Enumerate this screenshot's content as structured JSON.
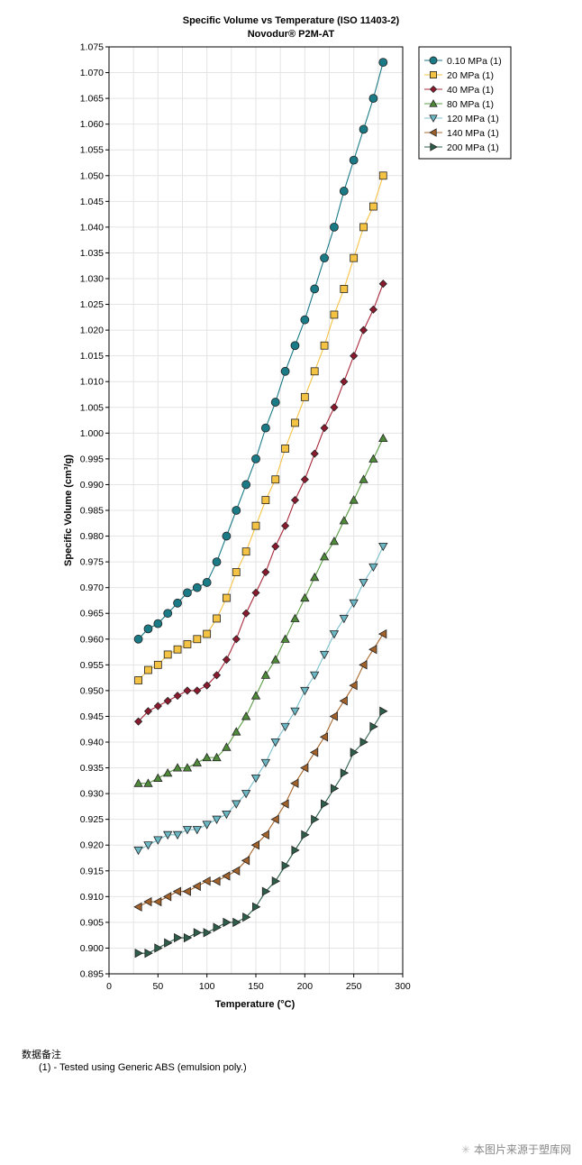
{
  "chart_data": {
    "type": "line",
    "title": "Specific Volume vs Temperature (ISO 11403-2)",
    "subtitle": "Novodur® P2M-AT",
    "xlabel": "Temperature (°C)",
    "ylabel": "Specific Volume (cm³/g)",
    "xlim": [
      0,
      300
    ],
    "ylim": [
      0.895,
      1.075
    ],
    "xticks": [
      "0",
      "50",
      "100",
      "150",
      "200",
      "250",
      "300"
    ],
    "yticks": [
      "0.895",
      "0.900",
      "0.905",
      "0.910",
      "0.915",
      "0.920",
      "0.925",
      "0.930",
      "0.935",
      "0.940",
      "0.945",
      "0.950",
      "0.955",
      "0.960",
      "0.965",
      "0.970",
      "0.975",
      "0.980",
      "0.985",
      "0.990",
      "0.995",
      "1.000",
      "1.005",
      "1.010",
      "1.015",
      "1.020",
      "1.025",
      "1.030",
      "1.035",
      "1.040",
      "1.045",
      "1.050",
      "1.055",
      "1.060",
      "1.065",
      "1.070",
      "1.075"
    ],
    "grid": true,
    "legend_position": "top-right",
    "x": [
      30,
      40,
      50,
      60,
      70,
      80,
      90,
      100,
      110,
      120,
      130,
      140,
      150,
      160,
      170,
      180,
      190,
      200,
      210,
      220,
      230,
      240,
      250,
      260,
      270,
      280
    ],
    "series": [
      {
        "name": "0.10 MPa (1)",
        "marker": "circle",
        "color": "#1a7a86",
        "line": "#1a7a86",
        "values": [
          0.96,
          0.962,
          0.963,
          0.965,
          0.967,
          0.969,
          0.97,
          0.971,
          0.975,
          0.98,
          0.985,
          0.99,
          0.995,
          1.001,
          1.006,
          1.012,
          1.017,
          1.022,
          1.028,
          1.034,
          1.04,
          1.047,
          1.053,
          1.059,
          1.065,
          1.072
        ]
      },
      {
        "name": "20 MPa (1)",
        "marker": "square",
        "color": "#f5c343",
        "line": "#f5c343",
        "values": [
          0.952,
          0.954,
          0.955,
          0.957,
          0.958,
          0.959,
          0.96,
          0.961,
          0.964,
          0.968,
          0.973,
          0.977,
          0.982,
          0.987,
          0.991,
          0.997,
          1.002,
          1.007,
          1.012,
          1.017,
          1.023,
          1.028,
          1.034,
          1.04,
          1.044,
          1.05
        ]
      },
      {
        "name": "40 MPa (1)",
        "marker": "diamond",
        "color": "#8b1a2e",
        "line": "#a8283a",
        "values": [
          0.944,
          0.946,
          0.947,
          0.948,
          0.949,
          0.95,
          0.95,
          0.951,
          0.953,
          0.956,
          0.96,
          0.965,
          0.969,
          0.973,
          0.978,
          0.982,
          0.987,
          0.991,
          0.996,
          1.001,
          1.005,
          1.01,
          1.015,
          1.02,
          1.024,
          1.029
        ]
      },
      {
        "name": "80 MPa (1)",
        "marker": "triangle-up",
        "color": "#4f8a3a",
        "line": "#5a9a44",
        "values": [
          0.932,
          0.932,
          0.933,
          0.934,
          0.935,
          0.935,
          0.936,
          0.937,
          0.937,
          0.939,
          0.942,
          0.945,
          0.949,
          0.953,
          0.956,
          0.96,
          0.964,
          0.968,
          0.972,
          0.976,
          0.979,
          0.983,
          0.987,
          0.991,
          0.995,
          0.999
        ]
      },
      {
        "name": "120 MPa (1)",
        "marker": "triangle-down",
        "color": "#6bb7c4",
        "line": "#7cc0cc",
        "values": [
          0.919,
          0.92,
          0.921,
          0.922,
          0.922,
          0.923,
          0.923,
          0.924,
          0.925,
          0.926,
          0.928,
          0.93,
          0.933,
          0.936,
          0.94,
          0.943,
          0.946,
          0.95,
          0.953,
          0.957,
          0.961,
          0.964,
          0.967,
          0.971,
          0.974,
          0.978
        ]
      },
      {
        "name": "140 MPa (1)",
        "marker": "triangle-left",
        "color": "#a0622a",
        "line": "#a8682e",
        "values": [
          0.908,
          0.909,
          0.909,
          0.91,
          0.911,
          0.911,
          0.912,
          0.913,
          0.913,
          0.914,
          0.915,
          0.917,
          0.92,
          0.922,
          0.925,
          0.928,
          0.932,
          0.935,
          0.938,
          0.941,
          0.945,
          0.948,
          0.951,
          0.955,
          0.958,
          0.961
        ]
      },
      {
        "name": "200 MPa (1)",
        "marker": "triangle-right",
        "color": "#2e5e4a",
        "line": "#2e5e4a",
        "values": [
          0.899,
          0.899,
          0.9,
          0.901,
          0.902,
          0.902,
          0.903,
          0.903,
          0.904,
          0.905,
          0.905,
          0.906,
          0.908,
          0.911,
          0.913,
          0.916,
          0.919,
          0.922,
          0.925,
          0.928,
          0.931,
          0.934,
          0.938,
          0.94,
          0.943,
          0.946
        ]
      }
    ]
  },
  "notes": {
    "title": "数据备注",
    "line": "(1) - Tested using Generic ABS (emulsion poly.)"
  },
  "watermark": {
    "icon": "asterisk-icon",
    "text": "本图片来源于塑库网"
  }
}
